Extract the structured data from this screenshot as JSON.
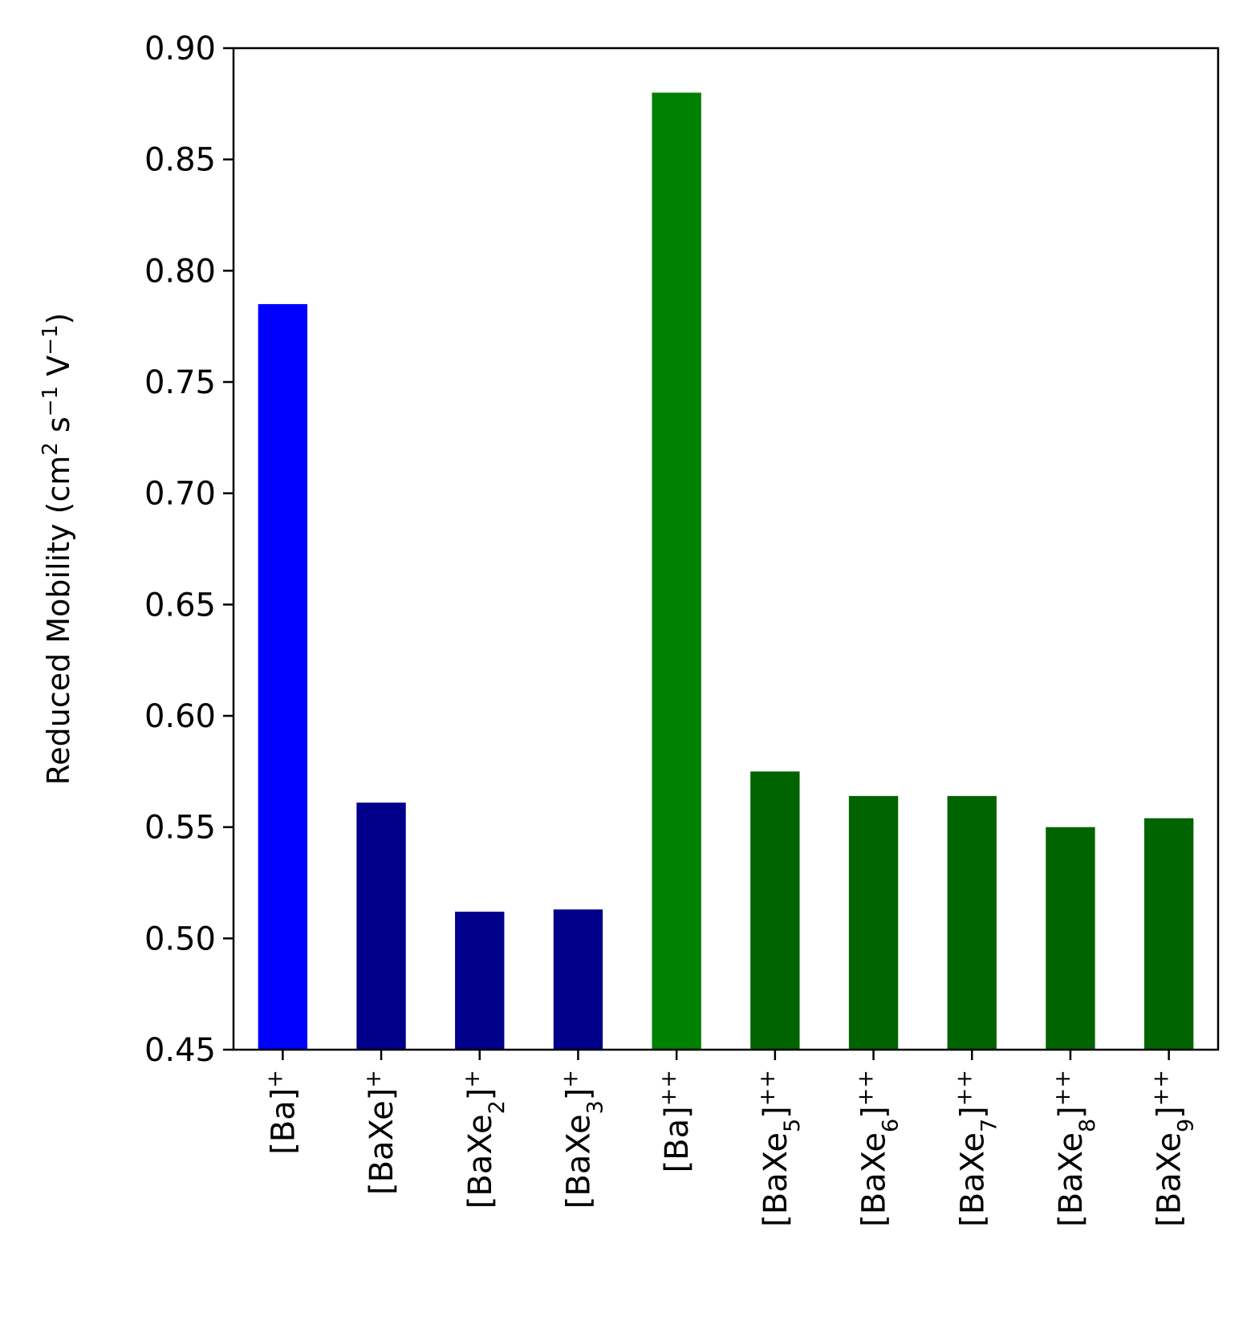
{
  "chart_data": {
    "type": "bar",
    "title": "",
    "xlabel": "",
    "ylabel": {
      "text": "Reduced Mobility (cm² s⁻¹ V⁻¹)",
      "parts": [
        {
          "t": "Reduced Mobility (cm"
        },
        {
          "t": "2",
          "sup": true
        },
        {
          "t": " s"
        },
        {
          "t": "−1",
          "sup": true
        },
        {
          "t": " V"
        },
        {
          "t": "−1",
          "sup": true
        },
        {
          "t": ")"
        }
      ]
    },
    "ylim": [
      0.45,
      0.9
    ],
    "yticks": [
      "0.45",
      "0.50",
      "0.55",
      "0.60",
      "0.65",
      "0.70",
      "0.75",
      "0.80",
      "0.85",
      "0.90"
    ],
    "categories": [
      {
        "text": "[Ba]+",
        "parts": [
          {
            "t": "[Ba]"
          },
          {
            "t": "+",
            "sup": true
          }
        ]
      },
      {
        "text": "[BaXe]+",
        "parts": [
          {
            "t": "[BaXe]"
          },
          {
            "t": "+",
            "sup": true
          }
        ]
      },
      {
        "text": "[BaXe2]+",
        "parts": [
          {
            "t": "[BaXe"
          },
          {
            "t": "2",
            "sub": true
          },
          {
            "t": "]"
          },
          {
            "t": "+",
            "sup": true
          }
        ]
      },
      {
        "text": "[BaXe3]+",
        "parts": [
          {
            "t": "[BaXe"
          },
          {
            "t": "3",
            "sub": true
          },
          {
            "t": "]"
          },
          {
            "t": "+",
            "sup": true
          }
        ]
      },
      {
        "text": "[Ba]++",
        "parts": [
          {
            "t": "[Ba]"
          },
          {
            "t": "++",
            "sup": true
          }
        ]
      },
      {
        "text": "[BaXe5]++",
        "parts": [
          {
            "t": "[BaXe"
          },
          {
            "t": "5",
            "sub": true
          },
          {
            "t": "]"
          },
          {
            "t": "++",
            "sup": true
          }
        ]
      },
      {
        "text": "[BaXe6]++",
        "parts": [
          {
            "t": "[BaXe"
          },
          {
            "t": "6",
            "sub": true
          },
          {
            "t": "]"
          },
          {
            "t": "++",
            "sup": true
          }
        ]
      },
      {
        "text": "[BaXe7]++",
        "parts": [
          {
            "t": "[BaXe"
          },
          {
            "t": "7",
            "sub": true
          },
          {
            "t": "]"
          },
          {
            "t": "++",
            "sup": true
          }
        ]
      },
      {
        "text": "[BaXe8]++",
        "parts": [
          {
            "t": "[BaXe"
          },
          {
            "t": "8",
            "sub": true
          },
          {
            "t": "]"
          },
          {
            "t": "++",
            "sup": true
          }
        ]
      },
      {
        "text": "[BaXe9]++",
        "parts": [
          {
            "t": "[BaXe"
          },
          {
            "t": "9",
            "sub": true
          },
          {
            "t": "]"
          },
          {
            "t": "++",
            "sup": true
          }
        ]
      }
    ],
    "values": [
      0.785,
      0.561,
      0.512,
      0.513,
      0.88,
      0.575,
      0.564,
      0.564,
      0.55,
      0.554
    ],
    "colors": [
      "#0000ff",
      "#00008b",
      "#00008b",
      "#00008b",
      "#008000",
      "#006400",
      "#006400",
      "#006400",
      "#006400",
      "#006400"
    ],
    "grid": false,
    "legend": "none"
  }
}
